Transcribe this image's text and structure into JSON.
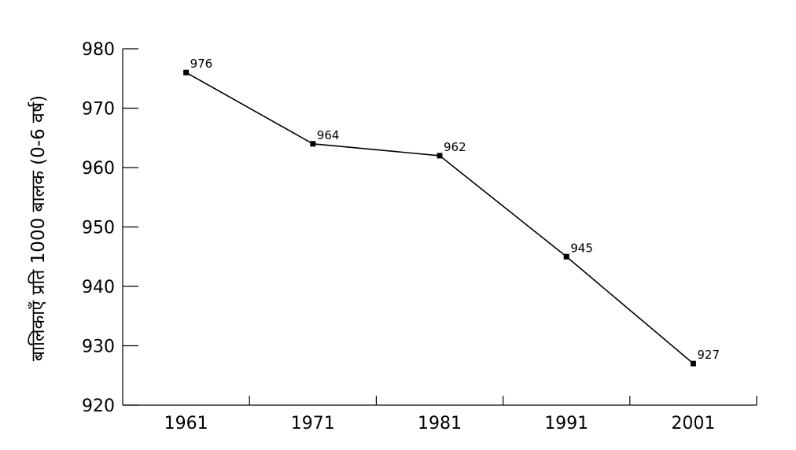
{
  "chart_data": {
    "type": "line",
    "title": "",
    "xlabel": "",
    "ylabel": "बालिकाएँ प्रति 1000 बालक (0-6 वर्ष)",
    "categories": [
      "1961",
      "1971",
      "1981",
      "1991",
      "2001"
    ],
    "series": [
      {
        "values": [
          976,
          964,
          962,
          945,
          927
        ],
        "data_labels": [
          "976",
          "964",
          "962",
          "945",
          "927"
        ],
        "color": "#000000"
      }
    ],
    "y_ticks": [
      "920",
      "930",
      "940",
      "950",
      "960",
      "970",
      "980"
    ],
    "ylim": [
      920,
      980
    ],
    "grid": false,
    "legend": "none"
  }
}
